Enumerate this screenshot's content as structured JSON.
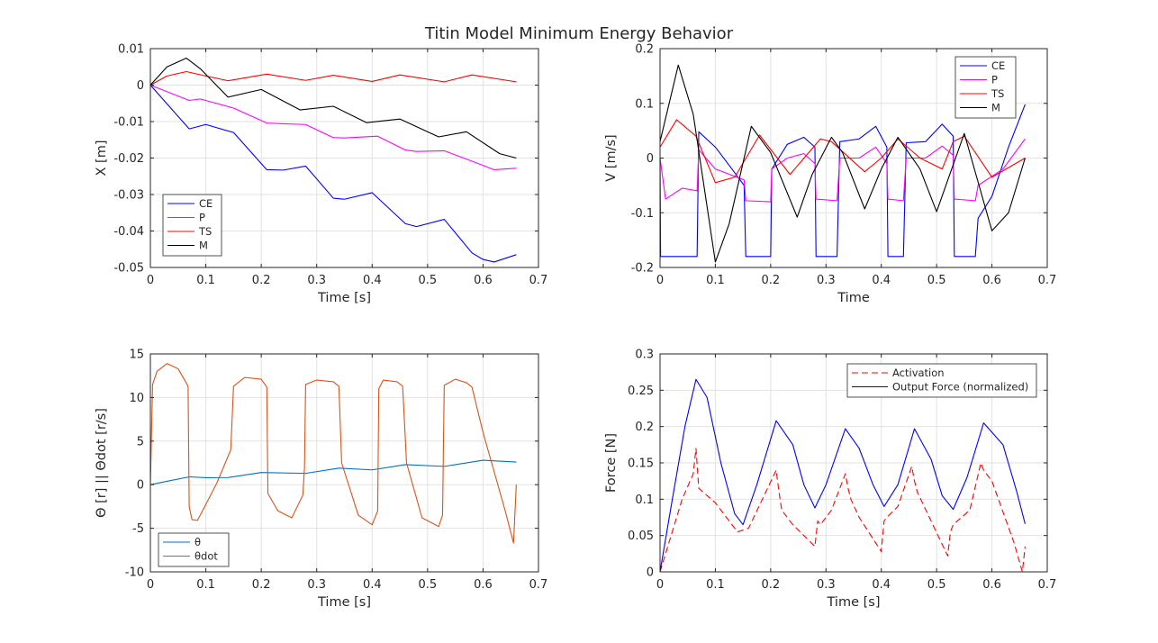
{
  "figure": {
    "title": "Titin Model Minimum Energy Behavior"
  },
  "chart_data": [
    {
      "id": "position",
      "type": "line",
      "xlabel": "Time [s]",
      "ylabel": "X [m]",
      "xlim": [
        0,
        0.7
      ],
      "ylim": [
        -0.05,
        0.01
      ],
      "xticks": [
        0,
        0.1,
        0.2,
        0.3,
        0.4,
        0.5,
        0.6,
        0.7
      ],
      "yticks": [
        -0.05,
        -0.04,
        -0.03,
        -0.02,
        -0.01,
        0,
        0.01
      ],
      "xtick_labels": [
        "0",
        "0.1",
        "0.2",
        "0.3",
        "0.4",
        "0.5",
        "0.6",
        "0.7"
      ],
      "ytick_labels": [
        "-0.05",
        "-0.04",
        "-0.03",
        "-0.02",
        "-0.01",
        "0",
        "0.01"
      ],
      "grid": true,
      "legend_position": "bottom-left",
      "series": [
        {
          "name": "CE",
          "color": "#0000ff",
          "dash": "",
          "x": [
            0,
            0.07,
            0.1,
            0.15,
            0.21,
            0.24,
            0.28,
            0.33,
            0.35,
            0.4,
            0.46,
            0.48,
            0.53,
            0.58,
            0.6,
            0.62,
            0.66
          ],
          "y": [
            0,
            -0.012,
            -0.0108,
            -0.013,
            -0.0232,
            -0.0233,
            -0.0222,
            -0.031,
            -0.0313,
            -0.0295,
            -0.038,
            -0.0388,
            -0.0368,
            -0.046,
            -0.0478,
            -0.0485,
            -0.0465
          ]
        },
        {
          "name": "P",
          "color": "#ff00ff",
          "dash": "",
          "x": [
            0,
            0.07,
            0.09,
            0.15,
            0.21,
            0.24,
            0.28,
            0.33,
            0.35,
            0.41,
            0.46,
            0.48,
            0.53,
            0.6,
            0.62,
            0.66
          ],
          "y": [
            0,
            -0.0042,
            -0.0038,
            -0.0063,
            -0.0104,
            -0.0106,
            -0.0108,
            -0.0144,
            -0.0145,
            -0.014,
            -0.0178,
            -0.0182,
            -0.018,
            -0.022,
            -0.0232,
            -0.0228
          ]
        },
        {
          "name": "TS",
          "color": "#ff0000",
          "dash": "",
          "x": [
            0,
            0.03,
            0.065,
            0.1,
            0.14,
            0.21,
            0.28,
            0.33,
            0.4,
            0.45,
            0.53,
            0.58,
            0.66
          ],
          "y": [
            0,
            0.0025,
            0.0037,
            0.0025,
            0.0012,
            0.003,
            0.0013,
            0.0027,
            0.001,
            0.0028,
            0.0009,
            0.0028,
            0.0009
          ]
        },
        {
          "name": "M",
          "color": "#000000",
          "dash": "",
          "x": [
            0,
            0.03,
            0.065,
            0.09,
            0.14,
            0.2,
            0.27,
            0.33,
            0.39,
            0.45,
            0.52,
            0.57,
            0.63,
            0.66
          ],
          "y": [
            0,
            0.005,
            0.0074,
            0.0045,
            -0.0033,
            -0.0012,
            -0.0068,
            -0.0058,
            -0.0103,
            -0.0093,
            -0.0142,
            -0.0128,
            -0.0188,
            -0.02
          ]
        }
      ]
    },
    {
      "id": "velocity",
      "type": "line",
      "xlabel": "Time",
      "ylabel": "V [m/s]",
      "xlim": [
        0,
        0.7
      ],
      "ylim": [
        -0.2,
        0.2
      ],
      "xticks": [
        0,
        0.1,
        0.2,
        0.3,
        0.4,
        0.5,
        0.6,
        0.7
      ],
      "yticks": [
        -0.2,
        -0.1,
        0,
        0.1,
        0.2
      ],
      "xtick_labels": [
        "0",
        "0.1",
        "0.2",
        "0.3",
        "0.4",
        "0.5",
        "0.6",
        "0.7"
      ],
      "ytick_labels": [
        "-0.2",
        "-0.1",
        "0",
        "0.1",
        "0.2"
      ],
      "grid": true,
      "legend_position": "top-right",
      "series": [
        {
          "name": "CE",
          "color": "#0000ff",
          "dash": "",
          "x": [
            0,
            0.001,
            0.067,
            0.07,
            0.1,
            0.13,
            0.152,
            0.155,
            0.2,
            0.202,
            0.23,
            0.26,
            0.28,
            0.282,
            0.32,
            0.325,
            0.36,
            0.39,
            0.41,
            0.412,
            0.44,
            0.445,
            0.48,
            0.51,
            0.53,
            0.532,
            0.57,
            0.575,
            0.6,
            0.63,
            0.66
          ],
          "y": [
            0,
            -0.18,
            -0.18,
            0.048,
            0.02,
            -0.02,
            -0.05,
            -0.18,
            -0.18,
            -0.02,
            0.025,
            0.038,
            0.02,
            -0.18,
            -0.18,
            0.03,
            0.035,
            0.058,
            0.02,
            -0.18,
            -0.18,
            0.028,
            0.03,
            0.062,
            0.04,
            -0.18,
            -0.18,
            -0.11,
            -0.07,
            0.02,
            0.098
          ]
        },
        {
          "name": "P",
          "color": "#ff00ff",
          "dash": "",
          "x": [
            0,
            0.01,
            0.04,
            0.067,
            0.07,
            0.1,
            0.152,
            0.155,
            0.2,
            0.202,
            0.23,
            0.26,
            0.28,
            0.282,
            0.32,
            0.325,
            0.36,
            0.39,
            0.41,
            0.412,
            0.44,
            0.445,
            0.48,
            0.51,
            0.53,
            0.532,
            0.57,
            0.575,
            0.62,
            0.66
          ],
          "y": [
            0,
            -0.075,
            -0.055,
            -0.06,
            0.015,
            -0.02,
            -0.04,
            -0.078,
            -0.08,
            -0.02,
            0.0,
            0.008,
            -0.01,
            -0.075,
            -0.078,
            0.0,
            0.0,
            0.02,
            -0.01,
            -0.075,
            -0.078,
            0.0,
            0.0,
            0.022,
            0.005,
            -0.075,
            -0.078,
            -0.05,
            -0.02,
            0.035
          ]
        },
        {
          "name": "TS",
          "color": "#ff0000",
          "dash": "",
          "x": [
            0,
            0.03,
            0.065,
            0.1,
            0.135,
            0.18,
            0.235,
            0.29,
            0.31,
            0.37,
            0.4,
            0.43,
            0.47,
            0.51,
            0.53,
            0.55,
            0.6,
            0.66
          ],
          "y": [
            0.02,
            0.07,
            0.04,
            -0.045,
            -0.035,
            0.042,
            -0.03,
            0.035,
            0.03,
            -0.025,
            0.0,
            0.035,
            0.0,
            -0.02,
            0.03,
            0.04,
            -0.035,
            0.0
          ]
        },
        {
          "name": "M",
          "color": "#000000",
          "dash": "",
          "x": [
            0,
            0.033,
            0.06,
            0.1,
            0.125,
            0.165,
            0.2,
            0.248,
            0.275,
            0.31,
            0.33,
            0.37,
            0.4,
            0.43,
            0.47,
            0.5,
            0.55,
            0.6,
            0.63,
            0.66
          ],
          "y": [
            0.03,
            0.17,
            0.08,
            -0.19,
            -0.12,
            0.058,
            0.01,
            -0.108,
            -0.03,
            0.038,
            0.01,
            -0.093,
            -0.02,
            0.038,
            -0.02,
            -0.098,
            0.045,
            -0.133,
            -0.1,
            0.0
          ]
        }
      ]
    },
    {
      "id": "angle",
      "type": "line",
      "xlabel": "Time [s]",
      "ylabel": "Θ [r] || Θdot [r/s]",
      "xlim": [
        0,
        0.7
      ],
      "ylim": [
        -10,
        15
      ],
      "xticks": [
        0,
        0.1,
        0.2,
        0.3,
        0.4,
        0.5,
        0.6,
        0.7
      ],
      "yticks": [
        -10,
        -5,
        0,
        5,
        10,
        15
      ],
      "xtick_labels": [
        "0",
        "0.1",
        "0.2",
        "0.3",
        "0.4",
        "0.5",
        "0.6",
        "0.7"
      ],
      "ytick_labels": [
        "-10",
        "-5",
        "0",
        "5",
        "10",
        "15"
      ],
      "grid": true,
      "legend_position": "bottom-left",
      "series": [
        {
          "name": "θ",
          "color": "#0072bd",
          "dash": "",
          "x": [
            0,
            0.035,
            0.07,
            0.1,
            0.14,
            0.2,
            0.28,
            0.34,
            0.4,
            0.46,
            0.53,
            0.6,
            0.66
          ],
          "y": [
            0,
            0.45,
            0.9,
            0.8,
            0.82,
            1.4,
            1.3,
            1.9,
            1.7,
            2.3,
            2.1,
            2.8,
            2.6
          ]
        },
        {
          "name": "θdot",
          "color": "#d95319",
          "dash": "",
          "x": [
            0,
            0.004,
            0.012,
            0.03,
            0.05,
            0.068,
            0.07,
            0.075,
            0.085,
            0.12,
            0.145,
            0.15,
            0.17,
            0.2,
            0.21,
            0.212,
            0.23,
            0.255,
            0.275,
            0.278,
            0.28,
            0.3,
            0.33,
            0.34,
            0.345,
            0.375,
            0.4,
            0.41,
            0.412,
            0.42,
            0.445,
            0.455,
            0.462,
            0.49,
            0.52,
            0.527,
            0.53,
            0.55,
            0.57,
            0.58,
            0.6,
            0.64,
            0.655,
            0.66
          ],
          "y": [
            0,
            11.5,
            13.0,
            13.9,
            13.3,
            11.3,
            -2.5,
            -4.0,
            -4.1,
            0.2,
            4.0,
            11.3,
            12.3,
            12.1,
            11.2,
            -1.0,
            -3.0,
            -3.8,
            -1.2,
            2.0,
            11.5,
            12.0,
            11.8,
            11.3,
            2.5,
            -3.5,
            -4.6,
            -3.0,
            11.0,
            12.0,
            11.8,
            11.3,
            2.5,
            -3.8,
            -4.8,
            -3.5,
            11.4,
            12.1,
            11.7,
            11.2,
            6.0,
            -3.0,
            -6.7,
            0.0
          ]
        }
      ]
    },
    {
      "id": "force",
      "type": "line",
      "xlabel": "Time [s]",
      "ylabel": "Force [N]",
      "xlim": [
        0,
        0.7
      ],
      "ylim": [
        0,
        0.3
      ],
      "xticks": [
        0,
        0.1,
        0.2,
        0.3,
        0.4,
        0.5,
        0.6,
        0.7
      ],
      "yticks": [
        0,
        0.05,
        0.1,
        0.15,
        0.2,
        0.25,
        0.3
      ],
      "xtick_labels": [
        "0",
        "0.1",
        "0.2",
        "0.3",
        "0.4",
        "0.5",
        "0.6",
        "0.7"
      ],
      "ytick_labels": [
        "0",
        "0.05",
        "0.1",
        "0.15",
        "0.2",
        "0.25",
        "0.3"
      ],
      "grid": true,
      "legend_position": "top-right",
      "series": [
        {
          "name": "Activation",
          "color": "#ff0000",
          "dash": "7,4",
          "x": [
            0,
            0.02,
            0.04,
            0.06,
            0.065,
            0.07,
            0.1,
            0.14,
            0.16,
            0.21,
            0.215,
            0.22,
            0.24,
            0.28,
            0.285,
            0.29,
            0.31,
            0.335,
            0.34,
            0.345,
            0.36,
            0.4,
            0.405,
            0.41,
            0.43,
            0.455,
            0.46,
            0.465,
            0.49,
            0.52,
            0.525,
            0.53,
            0.56,
            0.58,
            0.585,
            0.6,
            0.64,
            0.655,
            0.66
          ],
          "y": [
            0,
            0.05,
            0.1,
            0.135,
            0.17,
            0.115,
            0.095,
            0.055,
            0.06,
            0.14,
            0.11,
            0.085,
            0.065,
            0.035,
            0.07,
            0.065,
            0.085,
            0.135,
            0.115,
            0.1,
            0.075,
            0.028,
            0.07,
            0.075,
            0.09,
            0.145,
            0.125,
            0.11,
            0.07,
            0.022,
            0.055,
            0.065,
            0.085,
            0.15,
            0.14,
            0.125,
            0.04,
            0.0,
            0.035
          ]
        },
        {
          "name": "Output Force (normalized)",
          "color": "#0000ff",
          "dash": "",
          "x": [
            0,
            0.02,
            0.045,
            0.065,
            0.085,
            0.11,
            0.135,
            0.15,
            0.175,
            0.21,
            0.24,
            0.26,
            0.28,
            0.3,
            0.335,
            0.36,
            0.385,
            0.405,
            0.43,
            0.46,
            0.49,
            0.51,
            0.53,
            0.555,
            0.585,
            0.62,
            0.645,
            0.66
          ],
          "y": [
            0,
            0.09,
            0.2,
            0.265,
            0.24,
            0.15,
            0.08,
            0.065,
            0.12,
            0.208,
            0.175,
            0.12,
            0.088,
            0.12,
            0.197,
            0.17,
            0.12,
            0.09,
            0.12,
            0.197,
            0.155,
            0.105,
            0.086,
            0.13,
            0.205,
            0.175,
            0.11,
            0.066
          ]
        }
      ]
    }
  ]
}
